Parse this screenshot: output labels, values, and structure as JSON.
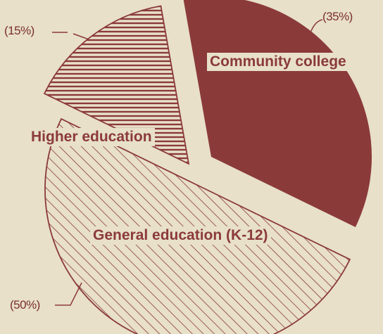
{
  "chart_data": {
    "type": "pie",
    "title": "",
    "slices": [
      {
        "label": "Community college",
        "value": 35,
        "value_label": "(35%)",
        "fill": "solid",
        "color": "#8b3a3a"
      },
      {
        "label": "General education (K-12)",
        "value": 50,
        "value_label": "(50%)",
        "fill": "diagonal-hatch",
        "color": "#8b3a3a"
      },
      {
        "label": "Higher education",
        "value": 15,
        "value_label": "(15%)",
        "fill": "horizontal-stripes",
        "color": "#8b3a3a"
      }
    ],
    "exploded": true,
    "legend": "none"
  },
  "colors": {
    "background": "#e8e0c9",
    "ink": "#8b3a3a",
    "label_bg": "#efe7d2"
  }
}
